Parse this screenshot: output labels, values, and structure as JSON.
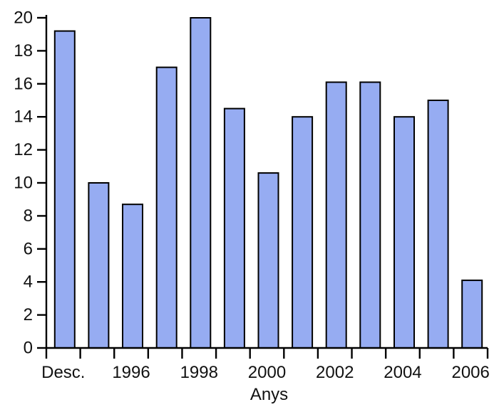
{
  "chart_data": {
    "type": "bar",
    "title": "",
    "xlabel": "Anys",
    "ylabel": "",
    "ylim": [
      0,
      20
    ],
    "y_tick_step": 2,
    "y_tick_labels": [
      "0",
      "2",
      "4",
      "6",
      "8",
      "10",
      "12",
      "14",
      "16",
      "18",
      "20"
    ],
    "grid": false,
    "legend_position": "none",
    "bars": [
      {
        "label": "Desc.",
        "value": 19.2
      },
      {
        "label": "",
        "value": 10.0
      },
      {
        "label": "1996",
        "value": 8.7
      },
      {
        "label": "",
        "value": 17.0
      },
      {
        "label": "1998",
        "value": 20.0
      },
      {
        "label": "",
        "value": 14.5
      },
      {
        "label": "2000",
        "value": 10.6
      },
      {
        "label": "",
        "value": 14.0
      },
      {
        "label": "2002",
        "value": 16.1
      },
      {
        "label": "",
        "value": 16.1
      },
      {
        "label": "2004",
        "value": 14.0
      },
      {
        "label": "",
        "value": 15.0
      },
      {
        "label": "2006",
        "value": 4.1
      }
    ],
    "colors": {
      "bar_fill": "#96acf2",
      "bar_border": "#000000",
      "axis": "#000000",
      "text": "#111111",
      "background": "#ffffff"
    }
  }
}
